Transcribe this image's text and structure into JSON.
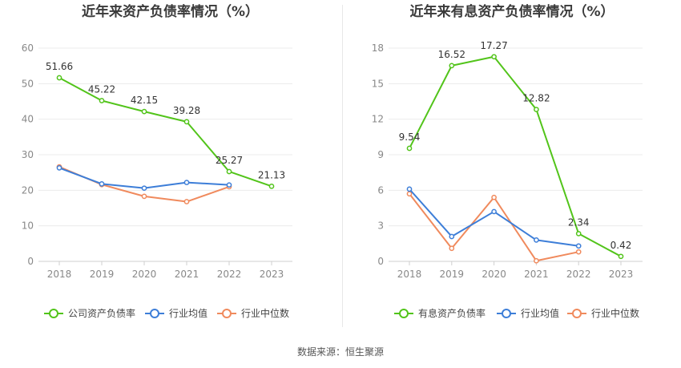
{
  "source_label": "数据来源：恒生聚源",
  "chart_data": [
    {
      "type": "line",
      "title": "近年来资产负债率情况（%）",
      "categories": [
        "2018",
        "2019",
        "2020",
        "2021",
        "2022",
        "2023"
      ],
      "y_ticks": [
        0,
        10,
        20,
        30,
        40,
        50,
        60
      ],
      "ylim": [
        0,
        60
      ],
      "grid": true,
      "legend_position": "bottom",
      "series": [
        {
          "name": "公司资产负债率",
          "color": "#52c41a",
          "values": [
            51.66,
            45.22,
            42.15,
            39.28,
            25.27,
            21.13
          ],
          "labels": [
            "51.66",
            "45.22",
            "42.15",
            "39.28",
            "25.27",
            "21.13"
          ]
        },
        {
          "name": "行业均值",
          "color": "#3d7ed8",
          "values": [
            26.3,
            21.8,
            20.6,
            22.2,
            21.5,
            null
          ]
        },
        {
          "name": "行业中位数",
          "color": "#f08a5d",
          "values": [
            26.6,
            21.6,
            18.3,
            16.8,
            21.0,
            null
          ]
        }
      ]
    },
    {
      "type": "line",
      "title": "近年来有息资产负债率情况（%）",
      "categories": [
        "2018",
        "2019",
        "2020",
        "2021",
        "2022",
        "2023"
      ],
      "y_ticks": [
        0,
        3,
        6,
        9,
        12,
        15,
        18
      ],
      "ylim": [
        0,
        18
      ],
      "grid": true,
      "legend_position": "bottom",
      "series": [
        {
          "name": "有息资产负债率",
          "color": "#52c41a",
          "values": [
            9.54,
            16.52,
            17.27,
            12.82,
            2.34,
            0.42
          ],
          "labels": [
            "9.54",
            "16.52",
            "17.27",
            "12.82",
            "2.34",
            "0.42"
          ]
        },
        {
          "name": "行业均值",
          "color": "#3d7ed8",
          "values": [
            6.1,
            2.1,
            4.2,
            1.8,
            1.3,
            null
          ]
        },
        {
          "name": "行业中位数",
          "color": "#f08a5d",
          "values": [
            5.7,
            1.1,
            5.4,
            0.05,
            0.8,
            null
          ]
        }
      ]
    }
  ]
}
